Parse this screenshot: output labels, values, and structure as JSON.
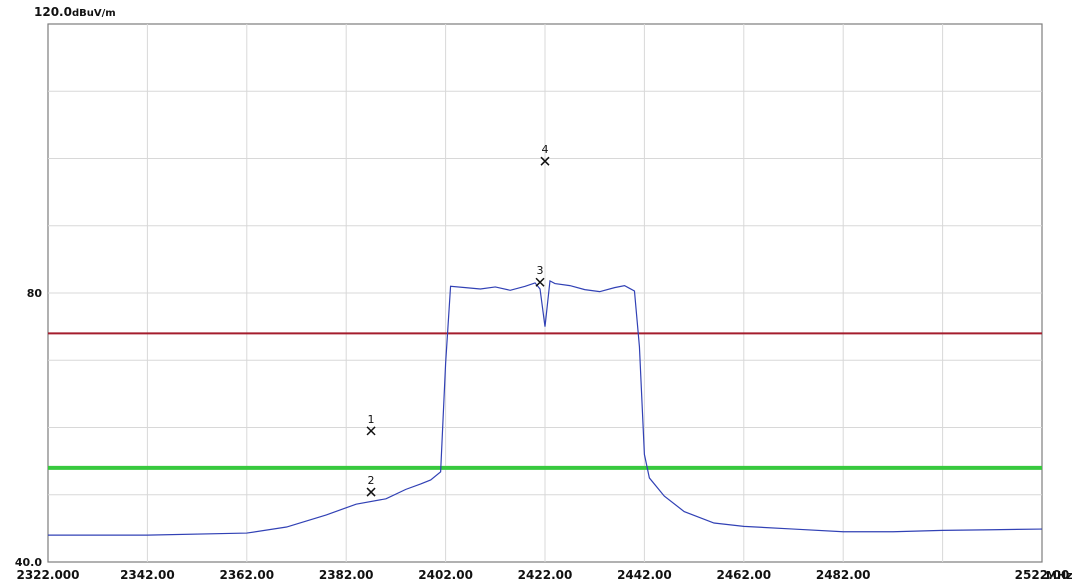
{
  "chart_data": {
    "type": "line",
    "ylim": [
      40,
      120
    ],
    "xlim": [
      2322,
      2522
    ],
    "y_top_label": "120.0",
    "y_unit": "dBuV/m",
    "y_ticks": [
      {
        "value": 80,
        "label": "80"
      },
      {
        "value": 40,
        "label": "40.0"
      }
    ],
    "x_ticks": [
      {
        "value": 2322,
        "label": "2322.000"
      },
      {
        "value": 2342,
        "label": "2342.00"
      },
      {
        "value": 2362,
        "label": "2362.00"
      },
      {
        "value": 2382,
        "label": "2382.00"
      },
      {
        "value": 2402,
        "label": "2402.00"
      },
      {
        "value": 2422,
        "label": "2422.00"
      },
      {
        "value": 2442,
        "label": "2442.00"
      },
      {
        "value": 2462,
        "label": "2462.00"
      },
      {
        "value": 2482,
        "label": "2482.00"
      },
      {
        "value": 2522,
        "label": "2522.00"
      }
    ],
    "x_unit": "MHz",
    "grid": true,
    "limit_lines": [
      {
        "y": 74,
        "color": "#a51d2d"
      },
      {
        "y": 54,
        "color": "#38c93e"
      }
    ],
    "series": [
      {
        "color": "#3141b5",
        "x": [
          2322,
          2342,
          2362,
          2370,
          2378,
          2384,
          2390,
          2394,
          2397,
          2399,
          2401,
          2402,
          2403,
          2406,
          2409,
          2412,
          2415,
          2418,
          2420,
          2421,
          2422,
          2423,
          2424,
          2427,
          2430,
          2433,
          2436,
          2438,
          2439,
          2440,
          2441,
          2442,
          2443,
          2446,
          2450,
          2456,
          2462,
          2472,
          2482,
          2492,
          2502,
          2512,
          2522
        ],
        "y": [
          44.0,
          44.0,
          44.3,
          45.2,
          47.0,
          48.6,
          49.4,
          50.8,
          51.6,
          52.2,
          53.4,
          69.5,
          81.0,
          80.8,
          80.6,
          80.9,
          80.4,
          81.0,
          81.5,
          80.6,
          75.0,
          81.8,
          81.4,
          81.1,
          80.5,
          80.2,
          80.8,
          81.1,
          80.7,
          80.3,
          72.0,
          56.0,
          52.5,
          49.8,
          47.5,
          45.8,
          45.3,
          44.9,
          44.5,
          44.5,
          44.7,
          44.8,
          44.9
        ]
      }
    ],
    "markers": [
      {
        "label": "1",
        "x": 2387,
        "y": 59.5
      },
      {
        "label": "2",
        "x": 2387,
        "y": 50.4
      },
      {
        "label": "3",
        "x": 2421,
        "y": 81.6
      },
      {
        "label": "4",
        "x": 2422,
        "y": 99.6
      }
    ]
  }
}
